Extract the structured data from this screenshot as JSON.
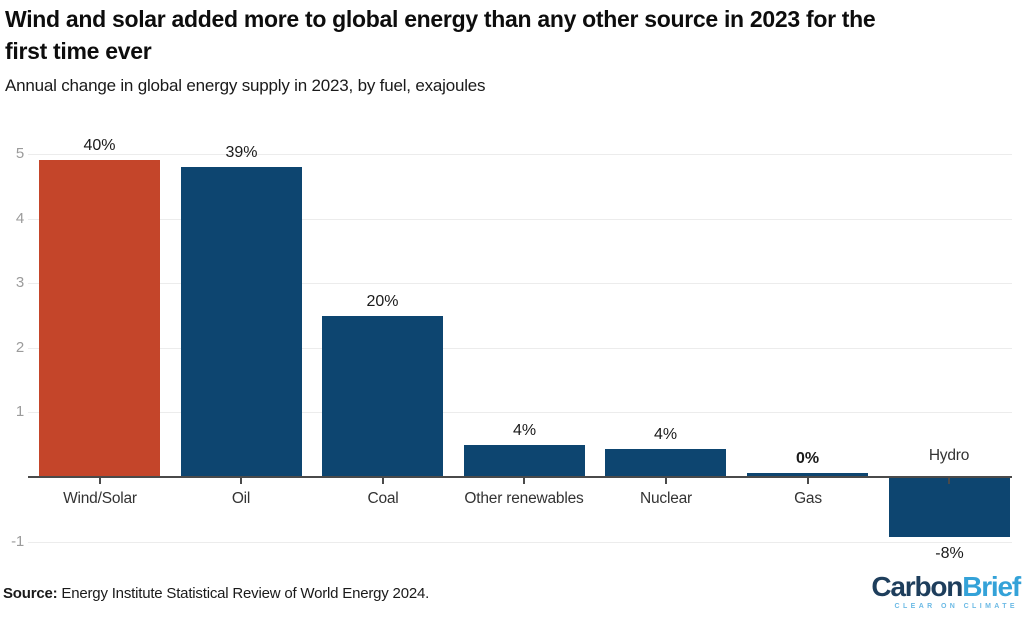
{
  "header": {
    "title_line1": "Wind and solar added more to global energy than any other source in 2023 for the",
    "title_line2": "first time ever",
    "subtitle": "Annual change in global energy supply in 2023, by fuel, exajoules"
  },
  "chart_data": {
    "type": "bar",
    "title": "Annual change in global energy supply in 2023, by fuel, exajoules",
    "xlabel": "",
    "ylabel": "exajoules",
    "ylim": [
      -1,
      5
    ],
    "yticks": [
      5,
      4,
      3,
      2,
      1,
      -1
    ],
    "grid": true,
    "categories": [
      "Wind/Solar",
      "Oil",
      "Coal",
      "Other renewables",
      "Nuclear",
      "Gas",
      "Hydro"
    ],
    "bars": [
      {
        "category": "Wind/Solar",
        "value": 4.9,
        "label": "40%",
        "color": "#c4452a",
        "label_bold": false
      },
      {
        "category": "Oil",
        "value": 4.8,
        "label": "39%",
        "color": "#0d4570",
        "label_bold": false
      },
      {
        "category": "Coal",
        "value": 2.5,
        "label": "20%",
        "color": "#0d4570",
        "label_bold": false
      },
      {
        "category": "Other renewables",
        "value": 0.5,
        "label": "4%",
        "color": "#0d4570",
        "label_bold": false
      },
      {
        "category": "Nuclear",
        "value": 0.43,
        "label": "4%",
        "color": "#0d4570",
        "label_bold": false
      },
      {
        "category": "Gas",
        "value": 0.06,
        "label": "0%",
        "color": "#0d4570",
        "label_bold": true
      },
      {
        "category": "Hydro",
        "value": -0.93,
        "label": "-8%",
        "color": "#0d4570",
        "label_bold": false
      }
    ],
    "highlight_color": "#c4452a",
    "default_color": "#0d4570",
    "legend": null
  },
  "footer": {
    "source_label": "Source:",
    "source_text": " Energy Institute Statistical Review of World Energy 2024.",
    "logo": {
      "part1": "Carbon",
      "part2": "Brief",
      "tagline": "CLEAR ON CLIMATE",
      "part1_color": "#1e3e5c",
      "part2_color": "#34a2d8",
      "tagline_color": "#6cbae5"
    }
  },
  "colors": {
    "axis": "#4a4a4a",
    "gridline": "#ececec",
    "ytick_label": "#9b9b9b",
    "category_label": "#333333",
    "value_label": "#1a1a1a"
  }
}
